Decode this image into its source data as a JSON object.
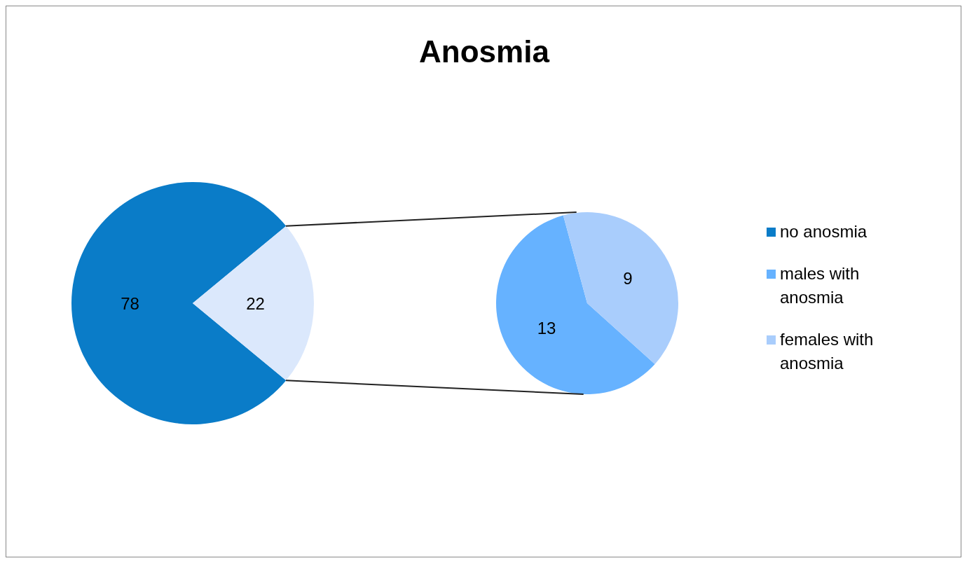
{
  "chart_data": [
    {
      "type": "pie",
      "title": "Anosmia",
      "categories": [
        "no anosmia",
        null
      ],
      "values": [
        78,
        22
      ],
      "colors": [
        "#0a7cc8",
        "#dbe8fc"
      ],
      "data_labels": true
    },
    {
      "type": "pie",
      "categories": [
        "males with anosmia",
        "females with anosmia"
      ],
      "values": [
        13,
        9
      ],
      "colors": [
        "#66b2ff",
        "#a9cdfc"
      ],
      "data_labels": true,
      "legend": "right"
    }
  ]
}
